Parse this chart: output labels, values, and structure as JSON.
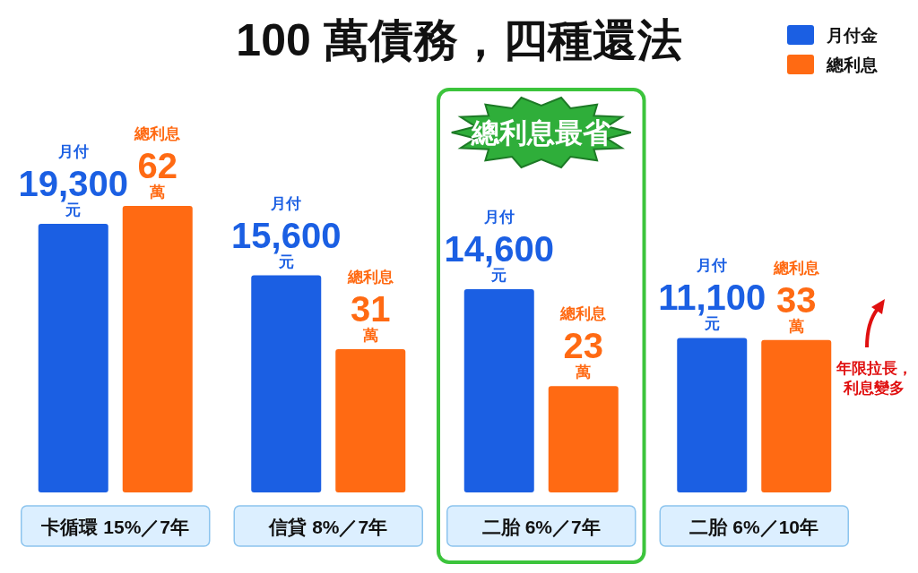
{
  "chart_data": {
    "type": "bar",
    "title": "100 萬債務，四種還法",
    "categories": [
      "卡循環 15%／7年",
      "信貸 8%／7年",
      "二胎 6%／7年",
      "二胎 6%／10年"
    ],
    "series": [
      {
        "name": "月付金",
        "color": "#1b5fe3",
        "values": [
          19300,
          15600,
          14600,
          11100
        ],
        "value_labels": [
          "月付\n19,300\n元",
          "月付\n15,600\n元",
          "月付\n14,600\n元",
          "月付\n11,100\n元"
        ]
      },
      {
        "name": "總利息",
        "color": "#ff6a13",
        "axis": "y2",
        "values": [
          62,
          31,
          23,
          33
        ],
        "value_labels": [
          "總利息\n62\n萬",
          "總利息\n31\n萬",
          "總利息\n23\n萬",
          "總利息\n33\n萬"
        ]
      }
    ],
    "legend": "top right",
    "annotations": [
      "總利息最省",
      "年限拉長，",
      "利息變多"
    ]
  }
}
